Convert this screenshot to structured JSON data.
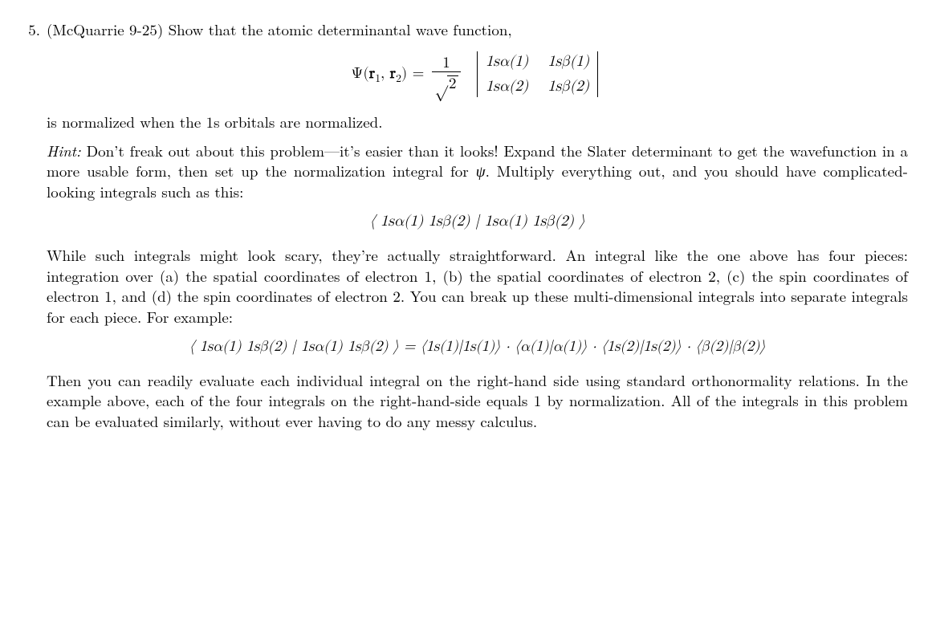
{
  "problem": {
    "number": "5.",
    "lead": "(McQuarrie 9-25) Show that the atomic determinantal wave function,",
    "eq1": {
      "lhs_psi": "Ψ",
      "lhs_open": "(",
      "lhs_r1": "r",
      "lhs_sub1": "1",
      "lhs_comma": ", ",
      "lhs_r2": "r",
      "lhs_sub2": "2",
      "lhs_close": ") =",
      "frac_num": "1",
      "sqrt_sym": "√",
      "sqrt_arg": "2",
      "d11": "1sα(1)",
      "d12": "1sβ(1)",
      "d21": "1sα(2)",
      "d22": "1sβ(2)"
    },
    "after_eq1": "is normalized when the 1s orbitals are normalized.",
    "hint_label": "Hint:",
    "hint_body_a": " Don’t freak out about this problem—it’s easier than it looks!  Expand the Slater determinant to get the wavefunction in a more usable form, then set up the normalization integral for ",
    "hint_psi": "ψ",
    "hint_body_b": ". Multiply everything out, and you should have complicated-looking integrals such as this:",
    "eq2": "⟨ 1sα(1) 1sβ(2) | 1sα(1) 1sβ(2) ⟩",
    "para3": "While such integrals might look scary, they’re actually straightforward. An integral like the one above has four pieces: integration over (a) the spatial coordinates of electron 1, (b) the spatial coordinates of electron 2, (c) the spin coordinates of electron 1, and (d) the spin coordinates of electron 2. You can break up these multi-dimensional integrals into separate integrals for each piece. For example:",
    "eq3": "⟨ 1sα(1) 1sβ(2) | 1sα(1) 1sβ(2) ⟩ = ⟨1s(1)|1s(1)⟩ · ⟨α(1)|α(1)⟩ · ⟨1s(2)|1s(2)⟩ · ⟨β(2)|β(2)⟩",
    "para4": "Then you can readily evaluate each individual integral on the right-hand side using standard orthonormality relations. In the example above, each of the four integrals on the right-hand-side equals 1 by normalization. All of the integrals in this problem can be evaluated similarly, without ever having to do any messy calculus."
  }
}
